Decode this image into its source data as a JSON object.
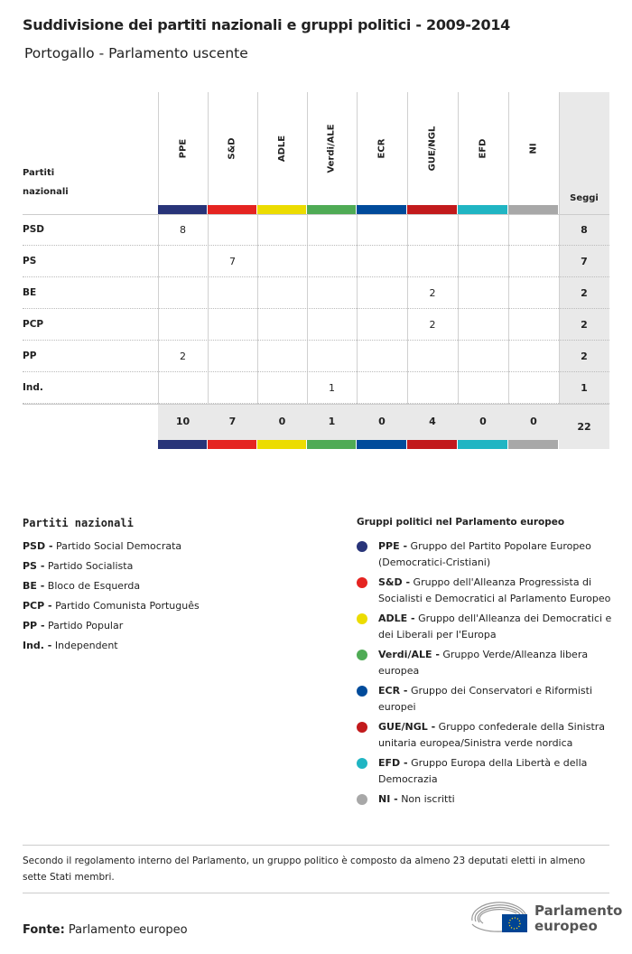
{
  "title": "Suddivisione dei partiti nazionali e gruppi politici - 2009-2014",
  "subtitle": "Portogallo - Parlamento uscente",
  "table": {
    "corner_label_1": "Partiti",
    "corner_label_2": "nazionali",
    "seats_header": "Seggi",
    "groups": [
      {
        "name": "PPE",
        "color": "#283479"
      },
      {
        "name": "S&D",
        "color": "#e52421"
      },
      {
        "name": "ADLE",
        "color": "#ecdc00"
      },
      {
        "name": "Verdi/ALE",
        "color": "#4fab55"
      },
      {
        "name": "ECR",
        "color": "#004b9b"
      },
      {
        "name": "GUE/NGL",
        "color": "#c21a1c"
      },
      {
        "name": "EFD",
        "color": "#20b5c3"
      },
      {
        "name": "NI",
        "color": "#a8a8a8"
      }
    ],
    "rows": [
      {
        "party": "PSD",
        "values": [
          "8",
          "",
          "",
          "",
          "",
          "",
          "",
          ""
        ],
        "seats": "8"
      },
      {
        "party": "PS",
        "values": [
          "",
          "7",
          "",
          "",
          "",
          "",
          "",
          ""
        ],
        "seats": "7"
      },
      {
        "party": "BE",
        "values": [
          "",
          "",
          "",
          "",
          "",
          "2",
          "",
          ""
        ],
        "seats": "2"
      },
      {
        "party": "PCP",
        "values": [
          "",
          "",
          "",
          "",
          "",
          "2",
          "",
          ""
        ],
        "seats": "2"
      },
      {
        "party": "PP",
        "values": [
          "2",
          "",
          "",
          "",
          "",
          "",
          "",
          ""
        ],
        "seats": "2"
      },
      {
        "party": "Ind.",
        "values": [
          "",
          "",
          "",
          "1",
          "",
          "",
          "",
          ""
        ],
        "seats": "1"
      }
    ],
    "totals": [
      "10",
      "7",
      "0",
      "1",
      "0",
      "4",
      "0",
      "0"
    ],
    "total_seats": "22"
  },
  "legend_parties": {
    "title": "Partiti nazionali",
    "items": [
      {
        "abbr": "PSD -",
        "name": "Partido Social Democrata"
      },
      {
        "abbr": "PS -",
        "name": "Partido Socialista"
      },
      {
        "abbr": "BE -",
        "name": "Bloco de Esquerda"
      },
      {
        "abbr": "PCP -",
        "name": "Partido Comunista Português"
      },
      {
        "abbr": "PP -",
        "name": "Partido Popular"
      },
      {
        "abbr": "Ind. -",
        "name": "Independent"
      }
    ]
  },
  "legend_groups": {
    "title": "Gruppi politici nel Parlamento europeo",
    "items": [
      {
        "abbr": "PPE -",
        "name": "Gruppo del Partito Popolare Europeo (Democratici-Cristiani)"
      },
      {
        "abbr": "S&D -",
        "name": "Gruppo dell'Alleanza Progressista di Socialisti e Democratici al Parlamento Europeo"
      },
      {
        "abbr": "ADLE -",
        "name": "Gruppo dell'Alleanza dei Democratici e dei Liberali per l'Europa"
      },
      {
        "abbr": "Verdi/ALE -",
        "name": "Gruppo Verde/Alleanza libera europea"
      },
      {
        "abbr": "ECR -",
        "name": "Gruppo dei Conservatori e Riformisti europei"
      },
      {
        "abbr": "GUE/NGL -",
        "name": "Gruppo confederale della Sinistra unitaria europea/Sinistra verde nordica"
      },
      {
        "abbr": "EFD -",
        "name": "Gruppo Europa della Libertà e della Democrazia"
      },
      {
        "abbr": "NI -",
        "name": "Non iscritti"
      }
    ]
  },
  "footnote": "Secondo il regolamento interno del Parlamento, un gruppo politico è composto da almeno 23 deputati eletti in almeno sette Stati membri.",
  "source_label": "Fonte:",
  "source": "Parlamento europeo",
  "logo": {
    "line1": "Parlamento",
    "line2": "europeo"
  }
}
